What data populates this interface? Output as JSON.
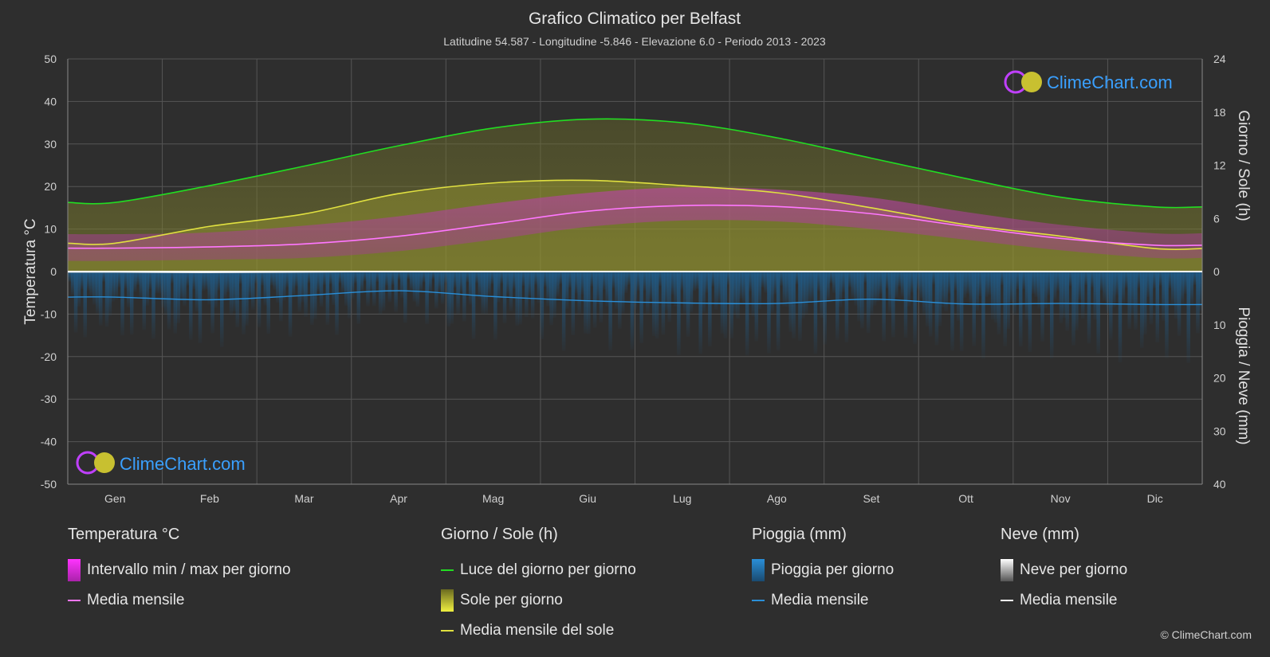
{
  "chart_data": {
    "type": "line",
    "title": "Grafico Climatico per Belfast",
    "subtitle": "Latitudine 54.587 - Longitudine -5.846 - Elevazione 6.0 - Periodo 2013 - 2023",
    "categories": [
      "Gen",
      "Feb",
      "Mar",
      "Apr",
      "Mag",
      "Giu",
      "Lug",
      "Ago",
      "Set",
      "Ott",
      "Nov",
      "Dic"
    ],
    "y_left": {
      "label": "Temperatura °C",
      "range": [
        -50,
        50
      ],
      "ticks": [
        "50",
        "40",
        "30",
        "20",
        "10",
        "0",
        "-10",
        "-20",
        "-30",
        "-40",
        "-50"
      ]
    },
    "y_right_top": {
      "label": "Giorno / Sole (h)",
      "range": [
        0,
        24
      ],
      "ticks": [
        "24",
        "18",
        "12",
        "6",
        "0"
      ]
    },
    "y_right_bottom": {
      "label": "Pioggia / Neve (mm)",
      "range": [
        0,
        40
      ],
      "ticks": [
        "10",
        "20",
        "30",
        "40"
      ]
    },
    "series": [
      {
        "name": "Luce del giorno per giorno",
        "unit": "h",
        "color": "#22dd22",
        "values": [
          7.8,
          9.7,
          11.9,
          14.2,
          16.2,
          17.2,
          16.8,
          15.1,
          12.8,
          10.5,
          8.4,
          7.3
        ]
      },
      {
        "name": "Media mensile del sole",
        "unit": "h",
        "color": "#e0e040",
        "values": [
          3.2,
          5.1,
          6.5,
          8.8,
          10.0,
          10.3,
          9.7,
          8.9,
          7.2,
          5.3,
          4.0,
          2.6
        ]
      },
      {
        "name": "Media mensile",
        "group": "Temperatura °C",
        "unit": "°C",
        "color": "#ff77ff",
        "values": [
          5.5,
          5.8,
          6.5,
          8.3,
          11.2,
          14.2,
          15.5,
          15.3,
          13.6,
          10.6,
          7.8,
          6.2
        ]
      },
      {
        "name": "Media mensile",
        "group": "Pioggia (mm)",
        "unit": "mm",
        "color": "#2a8fd8",
        "values": [
          4.8,
          5.3,
          4.5,
          3.6,
          4.7,
          5.5,
          5.9,
          6.0,
          5.2,
          6.1,
          6.0,
          6.2
        ]
      },
      {
        "name": "Media mensile",
        "group": "Neve (mm)",
        "unit": "mm",
        "color": "#ffffff",
        "values": [
          0.1,
          0.2,
          0.1,
          0,
          0,
          0,
          0,
          0,
          0,
          0,
          0,
          0.05
        ]
      }
    ],
    "ranges": {
      "temp_min": [
        2.5,
        2.8,
        3.2,
        4.8,
        7.5,
        10.5,
        12.0,
        11.8,
        10.0,
        7.5,
        5.0,
        3.2
      ],
      "temp_max": [
        8.8,
        9.2,
        10.8,
        13.0,
        16.0,
        18.5,
        19.8,
        19.3,
        17.4,
        14.0,
        11.0,
        9.0
      ]
    },
    "grid": true
  },
  "legend": {
    "temp": {
      "title": "Temperatura °C",
      "items": [
        "Intervallo min / max per giorno",
        "Media mensile"
      ]
    },
    "sun": {
      "title": "Giorno / Sole (h)",
      "items": [
        "Luce del giorno per giorno",
        "Sole per giorno",
        "Media mensile del sole"
      ]
    },
    "rain": {
      "title": "Pioggia (mm)",
      "items": [
        "Pioggia per giorno",
        "Media mensile"
      ]
    },
    "snow": {
      "title": "Neve (mm)",
      "items": [
        "Neve per giorno",
        "Media mensile"
      ]
    }
  },
  "brand": "ClimeChart.com",
  "copyright": "© ClimeChart.com",
  "colors": {
    "background": "#2e2e2e",
    "grid": "#555555",
    "daylight": "#22dd22",
    "sun": "#e0e040",
    "temp": "#ff77ff",
    "rain": "#2a8fd8",
    "snow": "#ffffff",
    "brand": "#3aa0ff"
  }
}
